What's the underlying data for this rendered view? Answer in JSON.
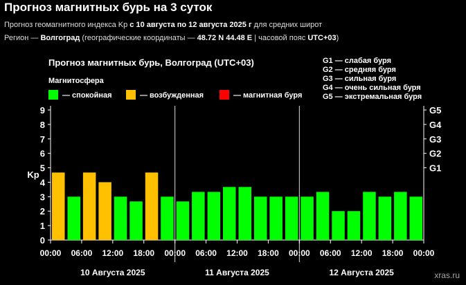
{
  "page": {
    "title": "Прогноз магнитных бурь на 3 суток",
    "subtitle_prefix": "Прогноз геомагнитного индекса Kp ",
    "subtitle_range": "с 10 августа по 12 августа 2025 г",
    "subtitle_suffix": " для средних широт",
    "region_prefix": "Регион — ",
    "region_city": "Волгоград",
    "region_coords_prefix": " (географические координаты — ",
    "region_coords": "48.72 N 44.48 E",
    "region_tz_prefix": " | часовой пояс ",
    "region_tz": "UTC+03",
    "region_suffix": ")"
  },
  "chart_data": {
    "type": "bar",
    "title": "Прогноз магнитных бурь, Волгоград (UTC+03)",
    "legend_title": "Магнитосфера",
    "legend": [
      {
        "label": "— спокойная",
        "color": "#00ff00"
      },
      {
        "label": "— возбужденная",
        "color": "#ffc000"
      },
      {
        "label": "— магнитная буря",
        "color": "#ff0000"
      }
    ],
    "g_legend": [
      "G1 — слабая буря",
      "G2 — средняя буря",
      "G3 — сильная буря",
      "G4 — очень сильная буря",
      "G5 — экстремальная буря"
    ],
    "ylabel": "Kp",
    "ylim": [
      0,
      9
    ],
    "y_ticks": [
      "0",
      "1",
      "2",
      "3",
      "4",
      "5",
      "6",
      "7",
      "8",
      "9"
    ],
    "g_ticks": [
      {
        "label": "G1",
        "value": 5
      },
      {
        "label": "G2",
        "value": 6
      },
      {
        "label": "G3",
        "value": 7
      },
      {
        "label": "G4",
        "value": 8
      },
      {
        "label": "G5",
        "value": 9
      }
    ],
    "x_tick_labels": [
      "00:00",
      "06:00",
      "12:00",
      "18:00",
      "00:00",
      "06:00",
      "12:00",
      "18:00",
      "00:00",
      "06:00",
      "12:00",
      "18:00",
      "00:00"
    ],
    "day_labels": [
      "10 Августа 2025",
      "11 Августа 2025",
      "12 Августа 2025"
    ],
    "values": [
      4.67,
      3.0,
      4.67,
      4.0,
      3.0,
      2.67,
      4.67,
      3.0,
      2.67,
      3.33,
      3.33,
      3.67,
      3.67,
      3.0,
      3.0,
      3.0,
      3.0,
      3.33,
      2.0,
      2.0,
      3.33,
      3.0,
      3.33,
      3.0
    ],
    "levels": [
      "excited",
      "quiet",
      "excited",
      "excited",
      "quiet",
      "quiet",
      "excited",
      "quiet",
      "quiet",
      "quiet",
      "quiet",
      "quiet",
      "quiet",
      "quiet",
      "quiet",
      "quiet",
      "quiet",
      "quiet",
      "quiet",
      "quiet",
      "quiet",
      "quiet",
      "quiet",
      "quiet"
    ],
    "colors": {
      "quiet": "#00ff00",
      "excited": "#ffc000",
      "storm": "#ff0000"
    },
    "watermark": "xras.ru"
  }
}
